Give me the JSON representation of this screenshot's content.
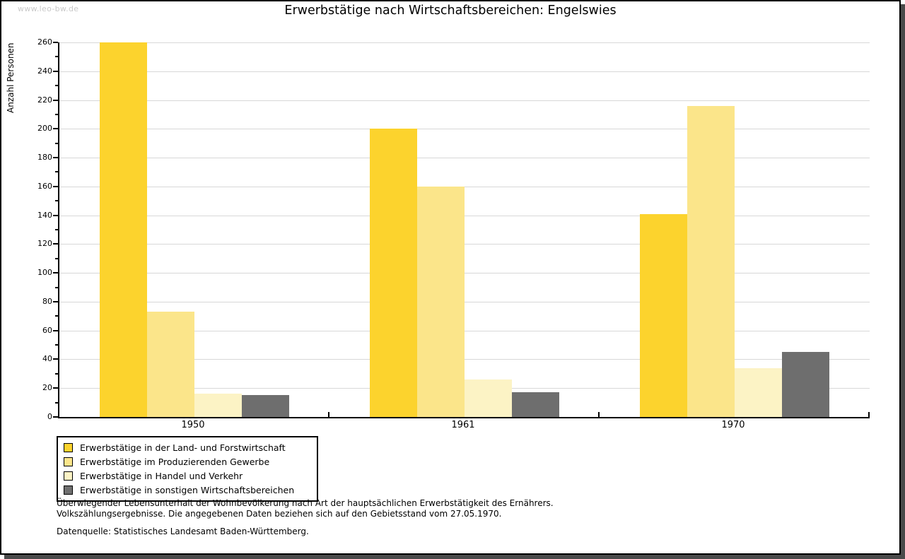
{
  "watermark": "www.leo-bw.de",
  "title": "Erwerbstätige nach Wirtschaftsbereichen: Engelswies",
  "chart_data": {
    "type": "bar",
    "categories": [
      "1950",
      "1961",
      "1970"
    ],
    "series": [
      {
        "name": "Erwerbstätige in der Land- und Forstwirtschaft",
        "values": [
          260,
          200,
          141
        ]
      },
      {
        "name": "Erwerbstätige im Produzierenden Gewerbe",
        "values": [
          73,
          160,
          216
        ]
      },
      {
        "name": "Erwerbstätige in Handel und Verkehr",
        "values": [
          16,
          26,
          34
        ]
      },
      {
        "name": "Erwerbstätige in sonstigen Wirtschaftsbereichen",
        "values": [
          15,
          17,
          45
        ]
      }
    ],
    "colors": [
      "#fcd32d",
      "#fbe58a",
      "#fcf3c5",
      "#6e6e6e"
    ],
    "ylabel": "Anzahl Personen",
    "xlabel": "",
    "ylim": [
      0,
      260
    ],
    "yticks": [
      0,
      20,
      40,
      60,
      80,
      100,
      120,
      140,
      160,
      180,
      200,
      220,
      240,
      260
    ],
    "minor_tick_step": 10,
    "grid": true,
    "legend_position": "bottom-left"
  },
  "footnotes": {
    "line1": "Überwiegender Lebensunterhalt der Wohnbevölkerung nach Art der hauptsächlichen Erwerbstätigkeit des Ernährers.",
    "line2": "Volkszählungsergebnisse. Die angegebenen Daten beziehen sich auf den Gebietsstand vom 27.05.1970.",
    "source": "Datenquelle: Statistisches Landesamt Baden-Württemberg."
  }
}
